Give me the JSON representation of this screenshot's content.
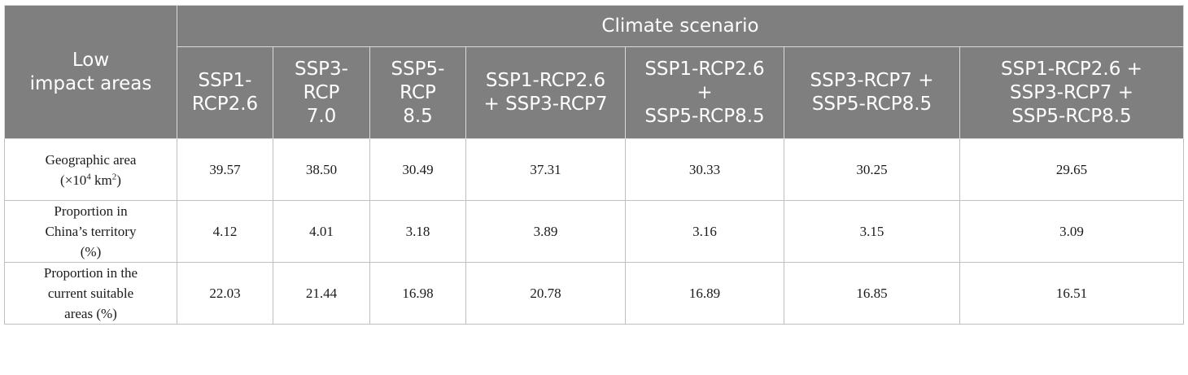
{
  "header": {
    "row_label": "Low\nimpact areas",
    "group_label": "Climate scenario",
    "columns": [
      "SSP1-\nRCP2.6",
      "SSP3-\nRCP\n7.0",
      "SSP5-\nRCP\n8.5",
      "SSP1-RCP2.6\n+ SSP3-RCP7",
      "SSP1-RCP2.6\n+\nSSP5-RCP8.5",
      "SSP3-RCP7 +\nSSP5-RCP8.5",
      "SSP1-RCP2.6 +\nSSP3-RCP7 +\nSSP5-RCP8.5"
    ]
  },
  "rows": [
    {
      "label_line1": "Geographic area",
      "label_prefix": "(×10",
      "label_sup1": "4",
      "label_mid": " km",
      "label_sup2": "2",
      "label_suffix": ")",
      "values": [
        "39.57",
        "38.50",
        "30.49",
        "37.31",
        "30.33",
        "30.25",
        "29.65"
      ]
    },
    {
      "label": "Proportion in\nChina’s territory\n(%)",
      "values": [
        "4.12",
        "4.01",
        "3.18",
        "3.89",
        "3.16",
        "3.15",
        "3.09"
      ]
    },
    {
      "label": "Proportion in the\ncurrent suitable\nareas (%)",
      "values": [
        "22.03",
        "21.44",
        "16.98",
        "20.78",
        "16.89",
        "16.85",
        "16.51"
      ]
    }
  ]
}
